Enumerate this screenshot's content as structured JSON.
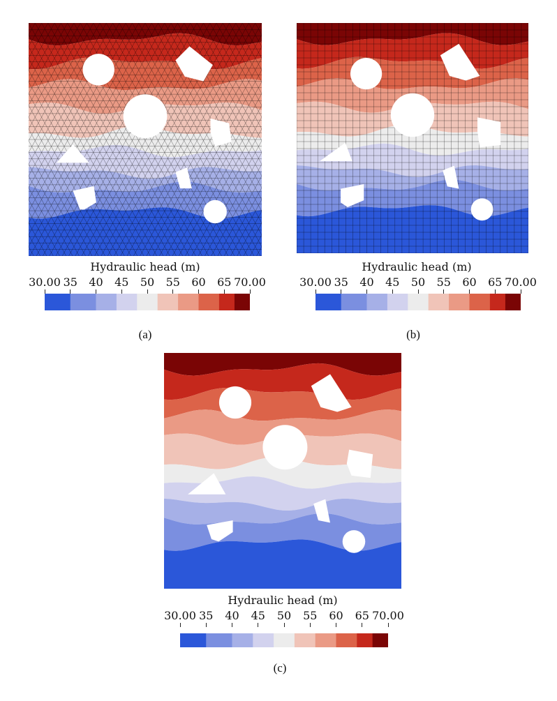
{
  "legend": {
    "title": "Hydraulic head (m)",
    "tick_labels": [
      "30.00",
      "35",
      "40",
      "45",
      "50",
      "55",
      "60",
      "65",
      "70.00"
    ],
    "tick_values": [
      30,
      35,
      40,
      45,
      50,
      55,
      60,
      65,
      70
    ],
    "range": [
      30,
      70
    ],
    "bins": [
      {
        "lo": 30.0,
        "hi": 35.0,
        "color": "#2b57d9"
      },
      {
        "lo": 35.0,
        "hi": 40.0,
        "color": "#7b8fe0"
      },
      {
        "lo": 40.0,
        "hi": 44.0,
        "color": "#a6b0e7"
      },
      {
        "lo": 44.0,
        "hi": 48.0,
        "color": "#d2d2ee"
      },
      {
        "lo": 48.0,
        "hi": 52.0,
        "color": "#ececec"
      },
      {
        "lo": 52.0,
        "hi": 56.0,
        "color": "#f0c4b8"
      },
      {
        "lo": 56.0,
        "hi": 60.0,
        "color": "#ea9a85"
      },
      {
        "lo": 60.0,
        "hi": 64.0,
        "color": "#dc6349"
      },
      {
        "lo": 64.0,
        "hi": 67.0,
        "color": "#c5281c"
      },
      {
        "lo": 67.0,
        "hi": 70.0,
        "color": "#7a0505"
      }
    ]
  },
  "panels": [
    {
      "caption": "(a)",
      "mesh": "triangular"
    },
    {
      "caption": "(b)",
      "mesh": "quadrilateral"
    },
    {
      "caption": "(c)",
      "mesh": "none"
    }
  ]
}
